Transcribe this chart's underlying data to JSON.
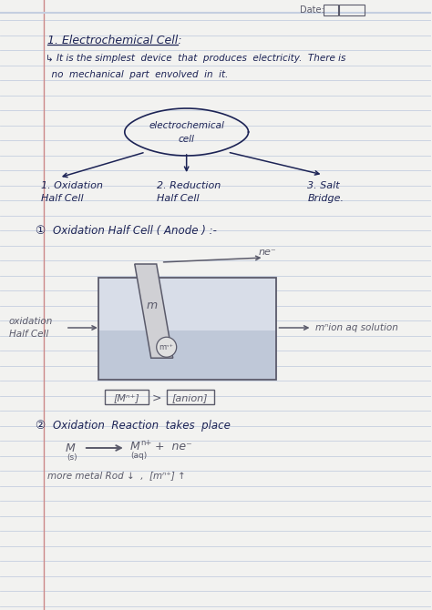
{
  "page_color": "#f2f2f0",
  "line_color": "#c5cfe0",
  "margin_color": "#cc8888",
  "ink_color": "#1c2355",
  "pencil_color": "#5a5a6a",
  "gray_ink": "#888899",
  "beaker_fill": "#d8dde8",
  "beaker_solution": "#bfc8d8",
  "rod_fill": "#c8c8c8",
  "date_label": "Date:",
  "title_line1": "1. Electrochemical Cell:",
  "subtitle1": "↳ It is the simplest  device  that  produces  electricity.  There is",
  "subtitle2": "  no  mechanical  part  envolved  in  it.",
  "ellipse_text1": "electrochemical",
  "ellipse_text2": "cell",
  "branch1a": "1. Oxidation",
  "branch1b": "Half Cell",
  "branch2a": "2. Reduction",
  "branch2b": "Half Cell",
  "branch3a": "3. Salt",
  "branch3b": "Bridge.",
  "section1": "Oxidation Half Cell ( Anode ) :-",
  "ne_label": "ne⁻",
  "m_label": "m",
  "ion_label": "mⁿ⁺",
  "left_label1": "oxidation",
  "left_label2": "Half Cell",
  "right_label": "mⁿion aq solution",
  "eq_left": "[Mⁿ⁺]",
  "eq_gt": ">",
  "eq_right": "[anion]",
  "section2": "Oxidation  Reaction  takes  place",
  "react_M": "M",
  "react_sub1": "(s)",
  "react_arrow": "→",
  "react_Mn": "Mⁿ⁺",
  "react_sub2": "(aq)",
  "react_ne": "+  ne⁻",
  "bottom": "more metal Rod ↓  ,  [mⁿ⁺] ↑"
}
